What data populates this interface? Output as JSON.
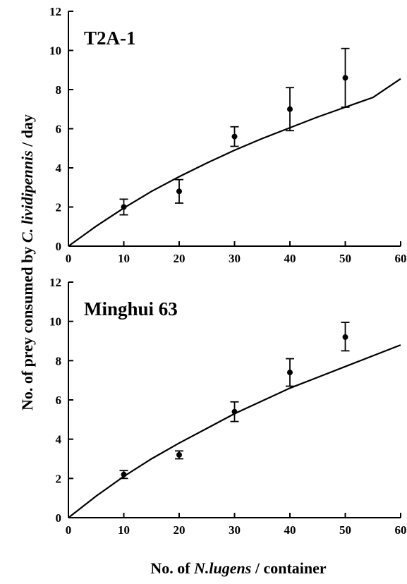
{
  "chart_data": [
    {
      "type": "scatter",
      "title": "T2A-1",
      "xlim": [
        0,
        60
      ],
      "ylim": [
        0,
        12
      ],
      "xticks": [
        "0",
        "10",
        "20",
        "30",
        "40",
        "50",
        "60"
      ],
      "yticks": [
        "0",
        "2",
        "4",
        "6",
        "8",
        "10",
        "12"
      ],
      "x": [
        10,
        20,
        30,
        40,
        50
      ],
      "y": [
        2.0,
        2.8,
        5.6,
        7.0,
        8.6
      ],
      "error_low": [
        1.6,
        2.2,
        5.1,
        5.9,
        7.1
      ],
      "error_high": [
        2.4,
        3.4,
        6.1,
        8.1,
        10.1
      ],
      "fit_curve": {
        "x": [
          0,
          5,
          10,
          15,
          20,
          25,
          30,
          35,
          40,
          45,
          50,
          55,
          60
        ],
        "y": [
          0,
          1.02,
          1.95,
          2.8,
          3.55,
          4.25,
          4.9,
          5.5,
          6.05,
          6.6,
          7.1,
          7.6,
          8.55
        ]
      },
      "grid": false,
      "marker_color": "#000000"
    },
    {
      "type": "scatter",
      "title": "Minghui 63",
      "xlim": [
        0,
        60
      ],
      "ylim": [
        0,
        12
      ],
      "xticks": [
        "0",
        "10",
        "20",
        "30",
        "40",
        "50",
        "60"
      ],
      "yticks": [
        "0",
        "2",
        "4",
        "6",
        "8",
        "10",
        "12"
      ],
      "x": [
        10,
        20,
        30,
        40,
        50
      ],
      "y": [
        2.2,
        3.2,
        5.4,
        7.4,
        9.2
      ],
      "error_low": [
        2.0,
        3.0,
        4.9,
        6.7,
        8.5
      ],
      "error_high": [
        2.4,
        3.4,
        5.9,
        8.1,
        9.95
      ],
      "fit_curve": {
        "x": [
          0,
          5,
          10,
          15,
          20,
          25,
          30,
          35,
          40,
          45,
          50,
          55,
          60
        ],
        "y": [
          0,
          1.1,
          2.1,
          3.0,
          3.8,
          4.55,
          5.3,
          5.95,
          6.6,
          7.15,
          7.7,
          8.25,
          8.8
        ]
      },
      "grid": false,
      "marker_color": "#000000"
    }
  ],
  "axes": {
    "ylabel_parts": [
      "No. of prey consumed  by ",
      "C. lividipennis",
      " / day"
    ],
    "xlabel_parts": [
      "No. of  ",
      "N.lugens",
      " / container"
    ]
  }
}
